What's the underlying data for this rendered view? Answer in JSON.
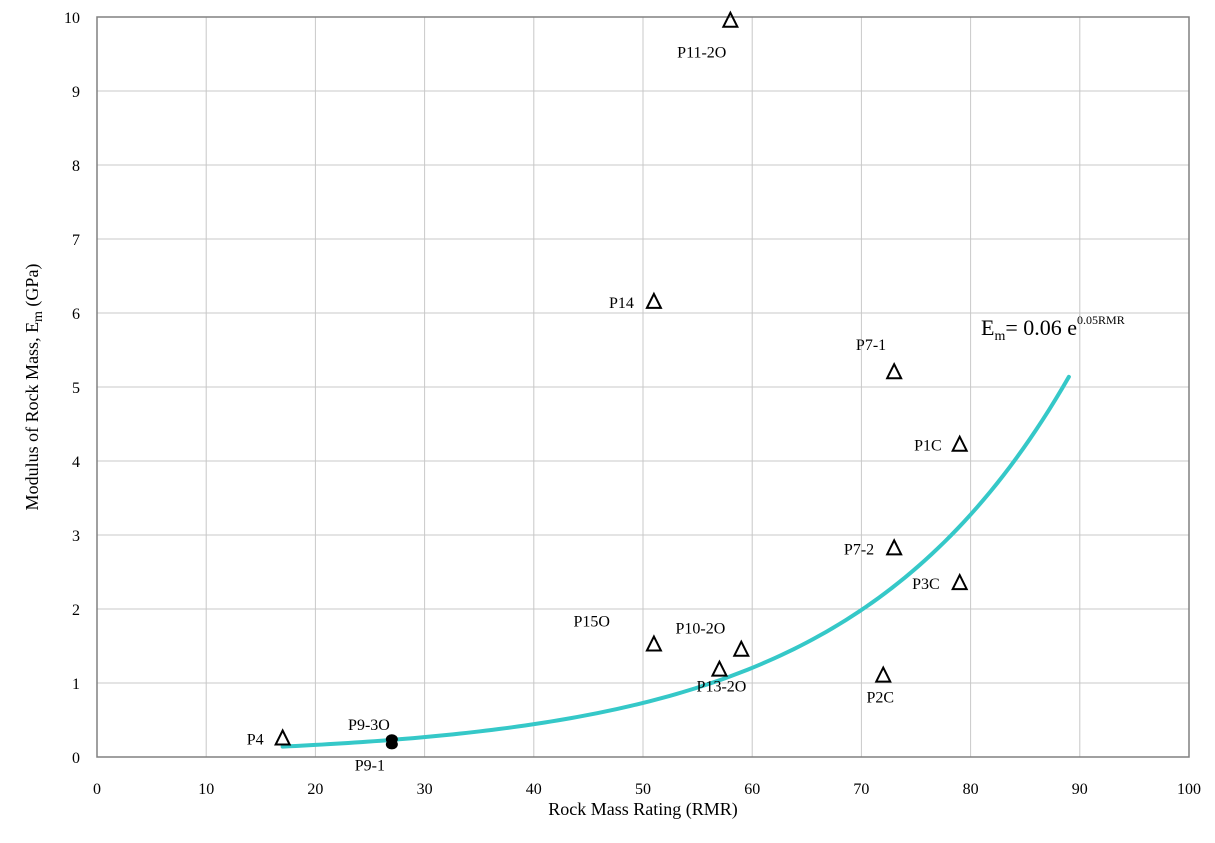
{
  "chart_data": {
    "type": "scatter",
    "xlabel": "Rock Mass Rating (RMR)",
    "ylabel_main": "Modulus of Rock Mass, E",
    "ylabel_sub": "m",
    "ylabel_unit": " (GPa)",
    "xlim": [
      0,
      100
    ],
    "ylim": [
      0,
      10
    ],
    "xticks": [
      "0",
      "10",
      "20",
      "30",
      "40",
      "50",
      "60",
      "70",
      "80",
      "90",
      "100"
    ],
    "yticks": [
      "0",
      "1",
      "2",
      "3",
      "4",
      "5",
      "6",
      "7",
      "8",
      "9",
      "10"
    ],
    "grid": true,
    "points": [
      {
        "label": "P11-2O",
        "x": 58,
        "y": 9.95,
        "marker": "triangle"
      },
      {
        "label": "P14",
        "x": 51,
        "y": 6.15,
        "marker": "triangle"
      },
      {
        "label": "P7-1",
        "x": 73,
        "y": 5.2,
        "marker": "triangle"
      },
      {
        "label": "P1C",
        "x": 79,
        "y": 4.22,
        "marker": "triangle"
      },
      {
        "label": "P7-2",
        "x": 73,
        "y": 2.82,
        "marker": "triangle"
      },
      {
        "label": "P3C",
        "x": 79,
        "y": 2.35,
        "marker": "triangle"
      },
      {
        "label": "P15O",
        "x": 51,
        "y": 1.52,
        "marker": "triangle"
      },
      {
        "label": "P10-2O",
        "x": 59,
        "y": 1.45,
        "marker": "triangle"
      },
      {
        "label": "P13-2O",
        "x": 57,
        "y": 1.18,
        "marker": "triangle"
      },
      {
        "label": "P2C",
        "x": 72,
        "y": 1.1,
        "marker": "triangle"
      },
      {
        "label": "P4",
        "x": 17,
        "y": 0.25,
        "marker": "triangle"
      },
      {
        "label": "P9-3O",
        "x": 27,
        "y": 0.24,
        "marker": "circle"
      },
      {
        "label": "P9-1",
        "x": 27,
        "y": 0.17,
        "marker": "circle"
      }
    ],
    "fit": {
      "a": 0.06,
      "b": 0.05,
      "x_range": [
        17,
        89
      ],
      "color": "#35c8c8",
      "eq_prefix": "E",
      "eq_sub": "m",
      "eq_mid": "= 0.06 e",
      "eq_sup": "0.05RMR"
    }
  }
}
